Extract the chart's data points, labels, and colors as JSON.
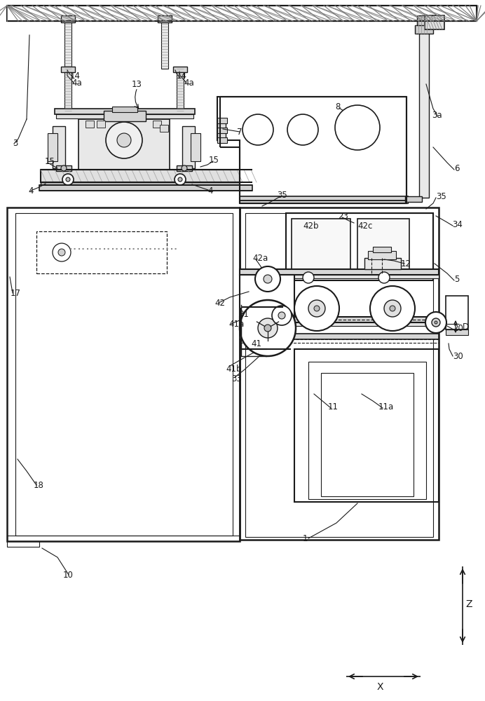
{
  "bg_color": "#ffffff",
  "lc": "#1a1a1a",
  "figsize": [
    6.92,
    10.0
  ],
  "dpi": 100,
  "labels": [
    [
      "3",
      18,
      205
    ],
    [
      "3a",
      616,
      165
    ],
    [
      "4",
      40,
      272
    ],
    [
      "4",
      296,
      272
    ],
    [
      "4a",
      102,
      118
    ],
    [
      "4a",
      262,
      118
    ],
    [
      "5",
      648,
      398
    ],
    [
      "6",
      648,
      240
    ],
    [
      "7",
      338,
      188
    ],
    [
      "8",
      478,
      152
    ],
    [
      "10",
      90,
      820
    ],
    [
      "11",
      468,
      580
    ],
    [
      "11a",
      540,
      580
    ],
    [
      "12",
      572,
      376
    ],
    [
      "13",
      188,
      120
    ],
    [
      "14",
      100,
      108
    ],
    [
      "14",
      252,
      108
    ],
    [
      "15",
      64,
      230
    ],
    [
      "15",
      298,
      228
    ],
    [
      "17",
      15,
      418
    ],
    [
      "18",
      48,
      692
    ],
    [
      "20",
      646,
      468
    ],
    [
      "23",
      482,
      308
    ],
    [
      "30",
      646,
      508
    ],
    [
      "33",
      330,
      540
    ],
    [
      "34",
      645,
      320
    ],
    [
      "35",
      395,
      278
    ],
    [
      "35",
      622,
      280
    ],
    [
      "41",
      358,
      490
    ],
    [
      "41a",
      326,
      462
    ],
    [
      "41b",
      322,
      526
    ],
    [
      "42",
      306,
      432
    ],
    [
      "42a",
      360,
      368
    ],
    [
      "42b",
      432,
      322
    ],
    [
      "42c",
      510,
      322
    ],
    [
      "81",
      340,
      448
    ],
    [
      "1",
      432,
      768
    ],
    [
      "D",
      660,
      466
    ]
  ]
}
